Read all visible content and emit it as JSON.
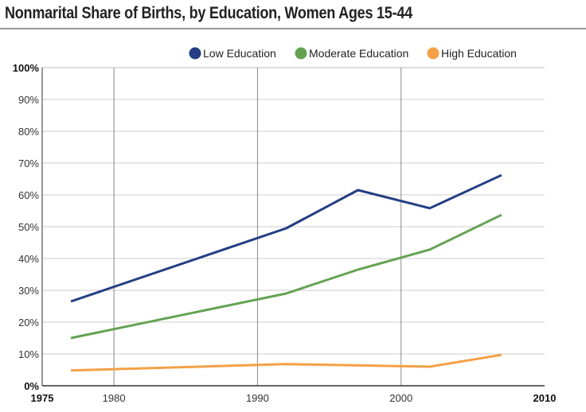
{
  "chart_data": {
    "type": "line",
    "title": "Nonmarital Share of Births, by Education, Women Ages 15-44",
    "xlabel": "",
    "ylabel": "",
    "xlim": [
      1975,
      2010
    ],
    "ylim": [
      0,
      100
    ],
    "x_ticks": [
      1975,
      1980,
      1990,
      2000,
      2010
    ],
    "y_ticks": [
      "0%",
      "10%",
      "20%",
      "30%",
      "40%",
      "50%",
      "60%",
      "70%",
      "80%",
      "90%",
      "100%"
    ],
    "legend_position": "top-right",
    "grid": true,
    "x": [
      1977,
      1992,
      1997,
      2002,
      2007
    ],
    "series": [
      {
        "name": "Low Education",
        "color": "#233e83",
        "values": [
          26.5,
          49.5,
          61.5,
          55.8,
          66.2
        ]
      },
      {
        "name": "Moderate Education",
        "color": "#64a253",
        "values": [
          15,
          29,
          36.5,
          42.8,
          53.7
        ]
      },
      {
        "name": "High Education",
        "color": "#f4a046",
        "values": [
          4.8,
          6.8,
          6.4,
          6,
          9.7
        ]
      }
    ]
  }
}
